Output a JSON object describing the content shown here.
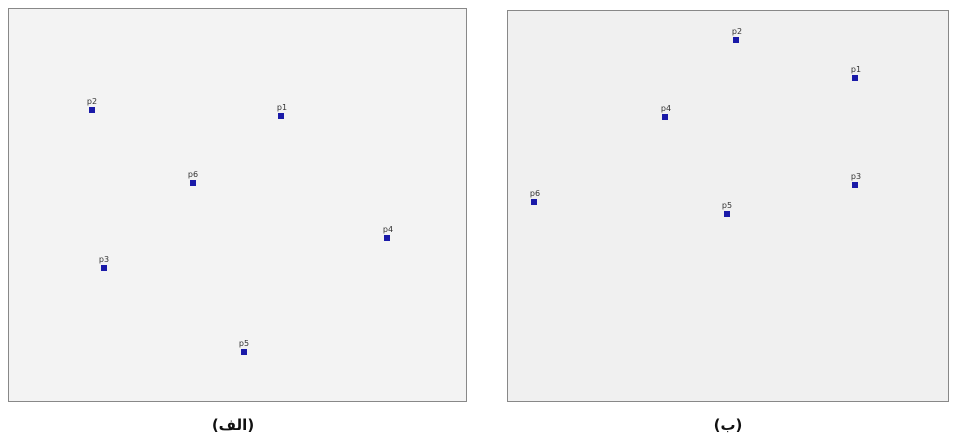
{
  "panels": [
    {
      "caption": "(الف)",
      "points": [
        "p2",
        "p1",
        "p6",
        "p4",
        "p3",
        "p5"
      ]
    },
    {
      "caption": "(ب)",
      "points": [
        "p2",
        "p1",
        "p4",
        "p3",
        "p6",
        "p5"
      ]
    }
  ]
}
